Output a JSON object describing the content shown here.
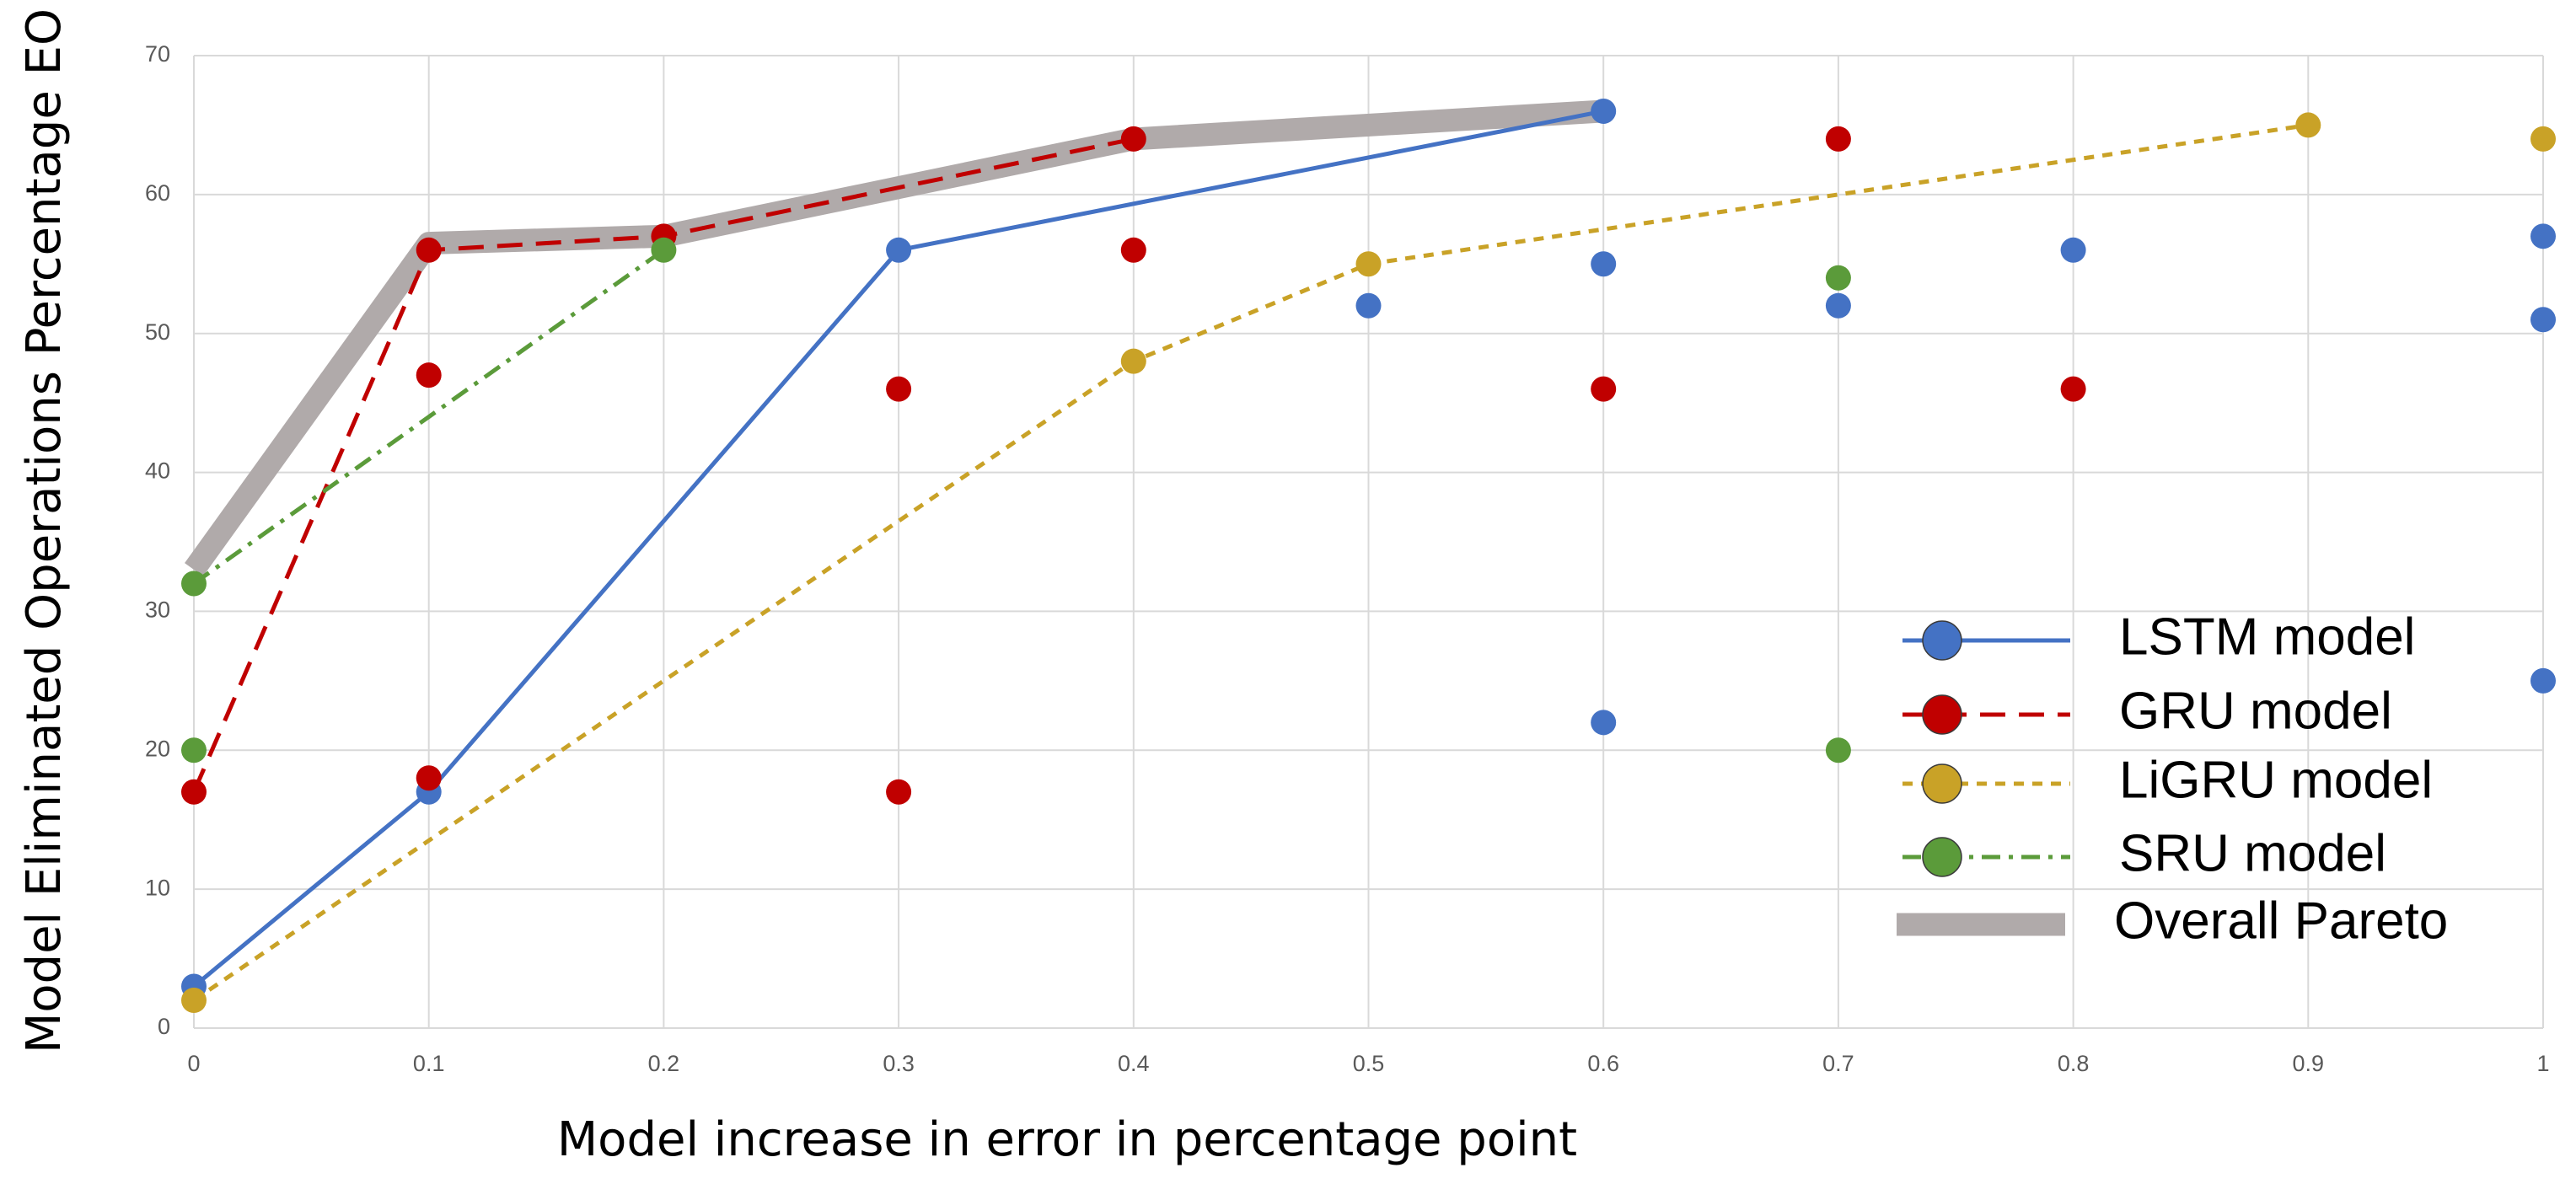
{
  "chart_data": {
    "type": "pareto-scatter",
    "xlabel": "Model increase in error in percentage point",
    "ylabel": "Model Eliminated Operations Percentage EO",
    "xlim": [
      0,
      1
    ],
    "xticks": [
      0,
      0.1,
      0.2,
      0.3,
      0.4,
      0.5,
      0.6,
      0.7,
      0.8,
      0.9,
      1
    ],
    "ylim": [
      0,
      70
    ],
    "yticks": [
      0,
      10,
      20,
      30,
      40,
      50,
      60,
      70
    ],
    "grid": true,
    "legend": "lower right",
    "series": [
      {
        "name": "LSTM model",
        "color": "#4472c4",
        "dash": "solid",
        "front": {
          "x": [
            0,
            0.1,
            0.3,
            0.6
          ],
          "values": [
            3,
            17,
            56,
            66
          ]
        },
        "others": {
          "x": [
            0.5,
            0.6,
            0.6,
            0.7,
            0.8,
            1,
            1,
            1
          ],
          "values": [
            52,
            55,
            22,
            52,
            56,
            57,
            51,
            25
          ]
        }
      },
      {
        "name": "GRU model",
        "color": "#c00000",
        "dash": "long-dash",
        "front": {
          "x": [
            0,
            0.1,
            0.2,
            0.4
          ],
          "values": [
            17,
            56,
            57,
            64
          ]
        },
        "others": {
          "x": [
            0.1,
            0.1,
            0.3,
            0.3,
            0.4,
            0.6,
            0.7,
            0.8
          ],
          "values": [
            47,
            18,
            46,
            17,
            56,
            46,
            64,
            46
          ]
        }
      },
      {
        "name": "LiGRU model",
        "color": "#c9a227",
        "dash": "short-dash",
        "front": {
          "x": [
            0,
            0.4,
            0.5,
            0.9
          ],
          "values": [
            2,
            48,
            55,
            65
          ]
        },
        "others": {
          "x": [
            1
          ],
          "values": [
            64
          ]
        }
      },
      {
        "name": "SRU model",
        "color": "#5b9b3a",
        "dash": "dash-dot",
        "front": {
          "x": [
            0,
            0.2
          ],
          "values": [
            32,
            56
          ]
        },
        "others": {
          "x": [
            0,
            0.7,
            0.7
          ],
          "values": [
            20,
            54,
            20
          ]
        }
      }
    ],
    "pareto": {
      "name": "Overall Pareto",
      "color": "#b0aaaa",
      "x": [
        0,
        0.1,
        0.2,
        0.4,
        0.6
      ],
      "values": [
        33,
        56.5,
        57,
        64,
        66
      ]
    }
  }
}
